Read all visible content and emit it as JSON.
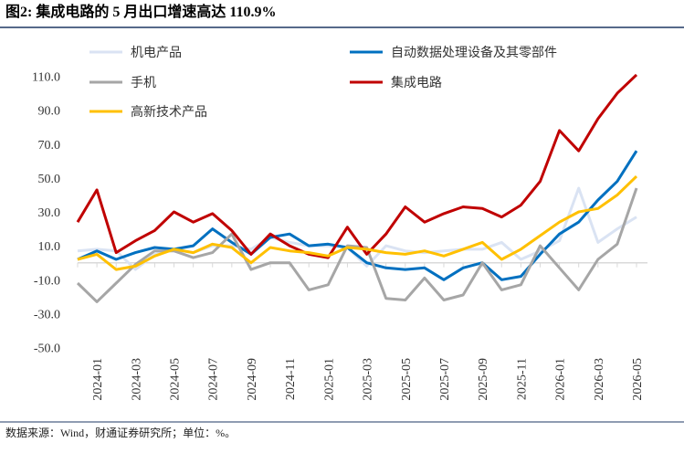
{
  "chart_data": {
    "type": "line",
    "title": "图2: 集成电路的 5 月出口增速高达 110.9%",
    "source": "数据来源：Wind，财通证券研究所；单位：%。",
    "categories": [
      null,
      "2024-01",
      null,
      "2024-03",
      null,
      "2024-05",
      null,
      "2024-07",
      null,
      "2024-09",
      null,
      "2024-11",
      null,
      "2025-01",
      null,
      "2025-03",
      null,
      "2025-05",
      null,
      "2025-07",
      null,
      "2025-09",
      null,
      "2025-11",
      null,
      "2026-01",
      null,
      "2026-03",
      null,
      "2026-05"
    ],
    "series": [
      {
        "name": "机电产品",
        "color": "#dae3f3",
        "values": [
          7,
          8,
          7,
          -4,
          5,
          8,
          6,
          10,
          10,
          8,
          15,
          12,
          10,
          10,
          9,
          -2,
          10,
          7,
          6,
          7,
          8,
          8,
          12,
          2,
          7,
          13,
          44,
          12,
          20,
          27
        ]
      },
      {
        "name": "自动数据处理设备及其零部件",
        "color": "#0070c0",
        "values": [
          2,
          7,
          2,
          6,
          9,
          8,
          10,
          20,
          12,
          5,
          15,
          17,
          10,
          11,
          9,
          0,
          -3,
          -4,
          -3,
          -10,
          -3,
          0,
          -10,
          -8,
          5,
          17,
          24,
          37,
          48,
          66
        ]
      },
      {
        "name": "手机",
        "color": "#a6a6a6",
        "values": [
          -12,
          -23,
          -12,
          -1,
          7,
          7,
          3,
          6,
          17,
          -4,
          0,
          0,
          -16,
          -13,
          10,
          9,
          -21,
          -22,
          -9,
          -22,
          -19,
          0,
          -16,
          -13,
          10,
          -3,
          -16,
          2,
          11,
          44
        ]
      },
      {
        "name": "集成电路",
        "color": "#c00000",
        "values": [
          24,
          43,
          6,
          13,
          19,
          30,
          24,
          29,
          19,
          5,
          17,
          10,
          5,
          3,
          21,
          5,
          17,
          33,
          24,
          29,
          33,
          32,
          27,
          34,
          48,
          78,
          66,
          85,
          100,
          110.9
        ]
      },
      {
        "name": "高新技术产品",
        "color": "#ffc000",
        "values": [
          2,
          5,
          -4,
          -2,
          4,
          8,
          6,
          11,
          9,
          0,
          9,
          7,
          6,
          4,
          9,
          8,
          6,
          5,
          7,
          4,
          8,
          12,
          2,
          8,
          16,
          24,
          30,
          32,
          40,
          51
        ]
      }
    ],
    "ylim": [
      -50,
      120
    ],
    "yticks": [
      {
        "value": -50,
        "label": "-50.0"
      },
      {
        "value": -30,
        "label": "-30.0"
      },
      {
        "value": -10,
        "label": "-10.0"
      },
      {
        "value": 10,
        "label": "10.0"
      },
      {
        "value": 30,
        "label": "30.0"
      },
      {
        "value": 50,
        "label": "50.0"
      },
      {
        "value": 70,
        "label": "70.0"
      },
      {
        "value": 90,
        "label": "90.0"
      },
      {
        "value": 110,
        "label": "110.0"
      }
    ],
    "grid": false
  }
}
